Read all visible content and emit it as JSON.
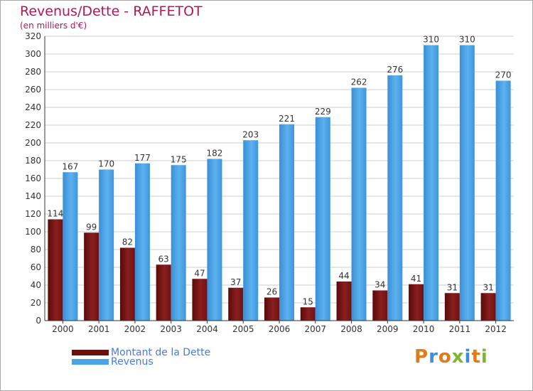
{
  "header": {
    "title": "Revenus/Dette - RAFFETOT",
    "subtitle": "(en milliers d'€)"
  },
  "colors": {
    "debt": "#7a1414",
    "revenue": "#4aa3e6",
    "title": "#b0175a",
    "legend_text": "#4a7ae0"
  },
  "logo": {
    "letters": [
      "P",
      "r",
      "o",
      "x",
      "i",
      "t",
      "i"
    ],
    "colors": [
      "#e07b1c",
      "#3b8fd8",
      "#e07b1c",
      "#7cb82f",
      "#3b8fd8",
      "#e07b1c",
      "#7cb82f"
    ]
  },
  "chart_data": {
    "type": "bar",
    "categories": [
      "2000",
      "2001",
      "2002",
      "2003",
      "2004",
      "2005",
      "2006",
      "2007",
      "2008",
      "2009",
      "2010",
      "2011",
      "2012"
    ],
    "series": [
      {
        "name": "Montant de la Dette",
        "values": [
          114,
          99,
          82,
          63,
          47,
          37,
          26,
          15,
          44,
          34,
          41,
          31,
          31
        ]
      },
      {
        "name": "Revenus",
        "values": [
          167,
          170,
          177,
          175,
          182,
          203,
          221,
          229,
          262,
          276,
          310,
          310,
          270
        ]
      }
    ],
    "ylim": [
      0,
      320
    ],
    "yticks": [
      0,
      20,
      40,
      60,
      80,
      100,
      120,
      140,
      160,
      180,
      200,
      220,
      240,
      260,
      280,
      300,
      320
    ],
    "grid": true,
    "legend_position": "bottom-left"
  }
}
